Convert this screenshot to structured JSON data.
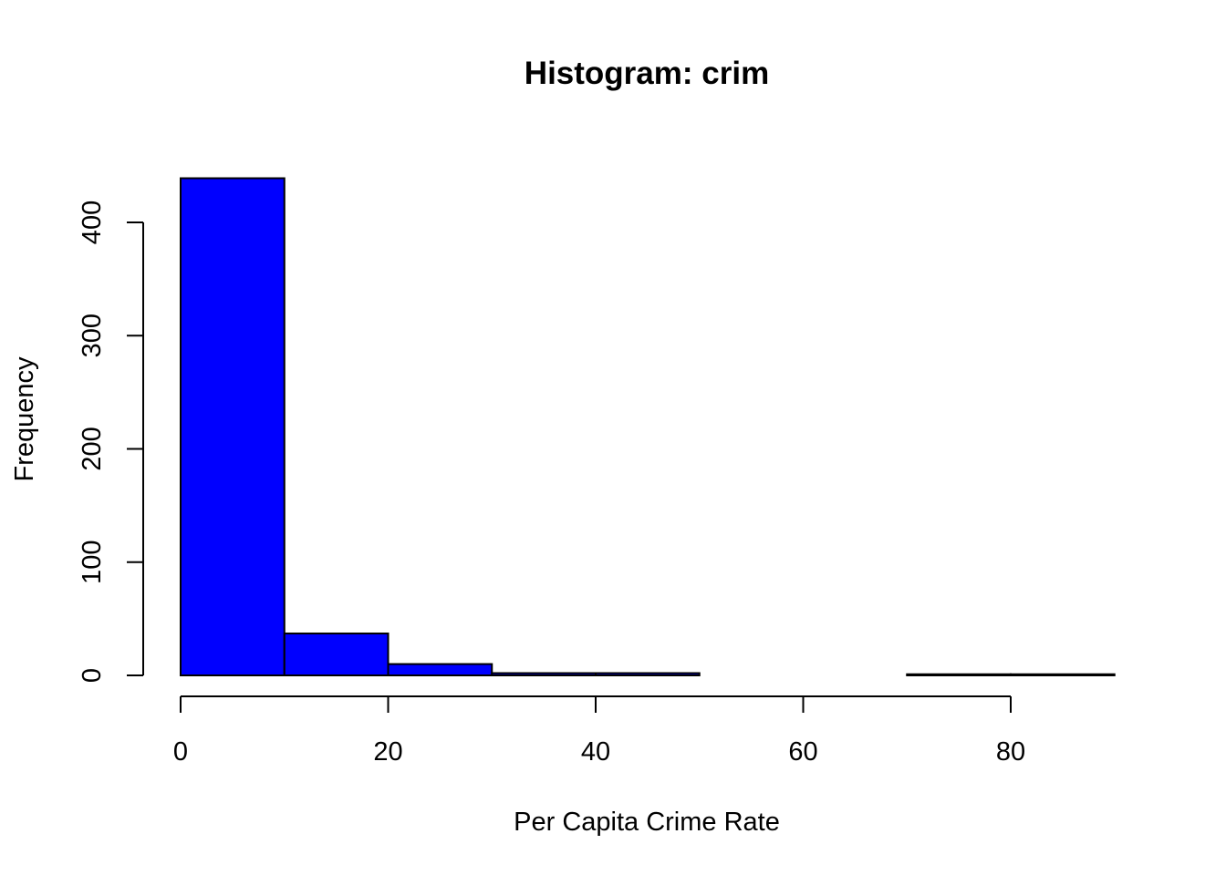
{
  "chart_data": {
    "type": "bar",
    "title": "Histogram: crim",
    "xlabel": "Per Capita Crime Rate",
    "ylabel": "Frequency",
    "bins": [
      {
        "start": 0,
        "end": 10,
        "count": 439
      },
      {
        "start": 10,
        "end": 20,
        "count": 37
      },
      {
        "start": 20,
        "end": 30,
        "count": 10
      },
      {
        "start": 30,
        "end": 40,
        "count": 2
      },
      {
        "start": 40,
        "end": 50,
        "count": 2
      },
      {
        "start": 50,
        "end": 60,
        "count": 0
      },
      {
        "start": 60,
        "end": 70,
        "count": 0
      },
      {
        "start": 70,
        "end": 80,
        "count": 1
      },
      {
        "start": 80,
        "end": 90,
        "count": 1
      }
    ],
    "xlim": [
      0,
      90
    ],
    "ylim": [
      0,
      450
    ],
    "x_ticks": [
      0,
      20,
      40,
      60,
      80
    ],
    "y_ticks": [
      0,
      100,
      200,
      300,
      400
    ],
    "bar_color": "#0000FF",
    "border_color": "#000000",
    "grid": false,
    "legend": "none"
  }
}
